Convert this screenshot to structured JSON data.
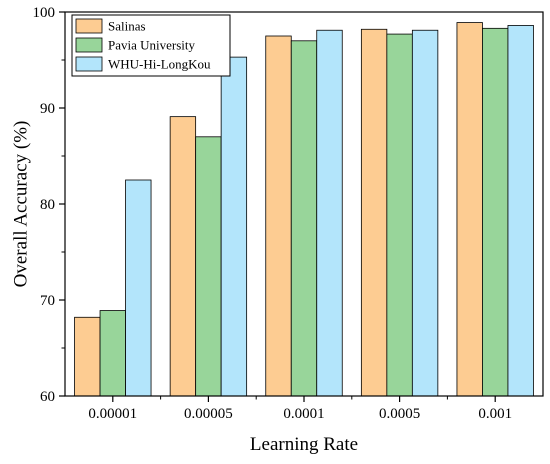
{
  "chart_data": {
    "type": "bar",
    "title": "",
    "xlabel": "Learning Rate",
    "ylabel": "Overall Accuracy (%)",
    "categories": [
      "0.00001",
      "0.00005",
      "0.0001",
      "0.0005",
      "0.001"
    ],
    "ylim": [
      60,
      100
    ],
    "yticks": [
      60,
      70,
      80,
      90,
      100
    ],
    "grid": false,
    "legend_position": "top-left",
    "series": [
      {
        "name": "Salinas",
        "color": "#FDCC92",
        "values": [
          68.2,
          89.1,
          97.5,
          98.2,
          98.9
        ]
      },
      {
        "name": "Pavia University",
        "color": "#98D59A",
        "values": [
          68.9,
          87.0,
          97.0,
          97.7,
          98.3
        ]
      },
      {
        "name": "WHU-Hi-LongKou",
        "color": "#B3E5FB",
        "values": [
          82.5,
          95.3,
          98.1,
          98.1,
          98.6
        ]
      }
    ]
  }
}
